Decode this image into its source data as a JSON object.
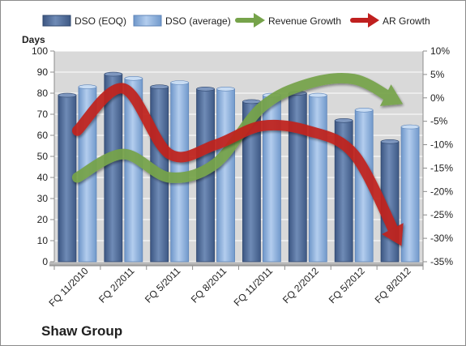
{
  "chart_data": {
    "type": "bar",
    "company": "Shaw Group",
    "ylabel": "Days",
    "categories": [
      "FQ 11/2010",
      "FQ 2/2011",
      "FQ 5/2011",
      "FQ 8/2011",
      "FQ 11/2011",
      "FQ 2/2012",
      "FQ 5/2012",
      "FQ 8/2012"
    ],
    "ylim": [
      0,
      100
    ],
    "yticks": [
      "0",
      "10",
      "20",
      "30",
      "40",
      "50",
      "60",
      "70",
      "80",
      "90",
      "100"
    ],
    "y2lim": [
      -35,
      10
    ],
    "y2ticks": [
      "10%",
      "5%",
      "0%",
      "-5%",
      "-10%",
      "-15%",
      "-20%",
      "-25%",
      "-30%",
      "-35%"
    ],
    "grid": true,
    "legend_position": "top",
    "series": [
      {
        "name": "DSO (EOQ)",
        "kind": "bar",
        "axis": "left",
        "color": "#4f6d9a",
        "values": [
          79,
          89,
          83,
          82,
          76,
          80,
          67,
          57
        ]
      },
      {
        "name": "DSO (average)",
        "kind": "bar",
        "axis": "left",
        "color": "#8fb4e3",
        "values": [
          83,
          87,
          85,
          82,
          79,
          79,
          72,
          64
        ]
      },
      {
        "name": "Revenue Growth",
        "kind": "line",
        "axis": "right",
        "color": "#76a34a",
        "values": [
          -17,
          -12,
          -17,
          -14,
          -2,
          3,
          4,
          -1
        ]
      },
      {
        "name": "AR Growth",
        "kind": "line",
        "axis": "right",
        "color": "#c0201f",
        "values": [
          -7,
          2,
          -12,
          -10,
          -6,
          -7,
          -12,
          -31
        ]
      }
    ]
  }
}
